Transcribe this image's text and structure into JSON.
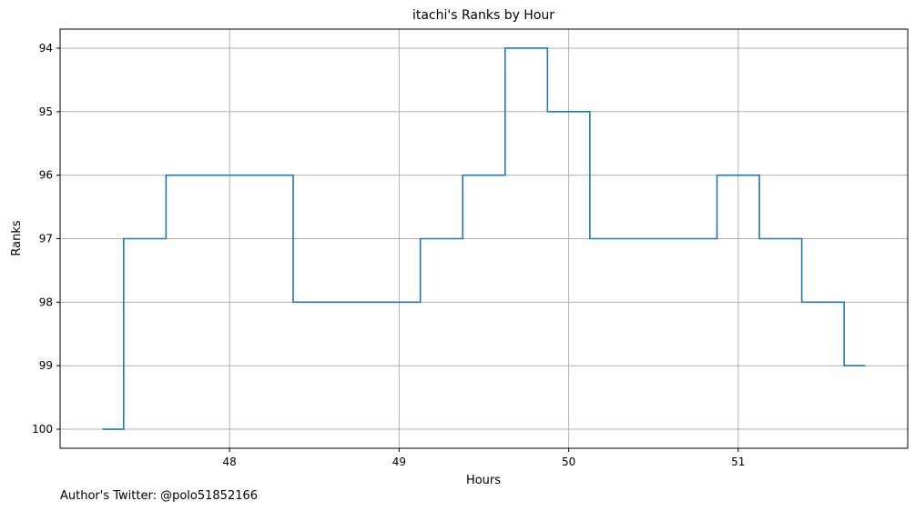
{
  "chart_data": {
    "type": "line",
    "step": "post",
    "title": "itachi's Ranks by Hour",
    "xlabel": "Hours",
    "ylabel": "Ranks",
    "xlim": [
      47.0,
      52.0
    ],
    "ylim": [
      100.3,
      93.7
    ],
    "y_inverted": true,
    "grid": true,
    "line_color": "#1f77b4",
    "x_ticks": [
      48,
      49,
      50,
      51
    ],
    "y_ticks": [
      94,
      95,
      96,
      97,
      98,
      99,
      100
    ],
    "series": [
      {
        "x": [
          47.25,
          47.375,
          47.625,
          48.375,
          49.125,
          49.375,
          49.625,
          49.875,
          50.125,
          50.875,
          51.125,
          51.375,
          51.625,
          51.75
        ],
        "y": [
          100,
          97,
          96,
          98,
          97,
          96,
          94,
          95,
          97,
          96,
          97,
          98,
          99,
          99
        ]
      }
    ]
  },
  "footer": "Author's Twitter: @polo51852166"
}
